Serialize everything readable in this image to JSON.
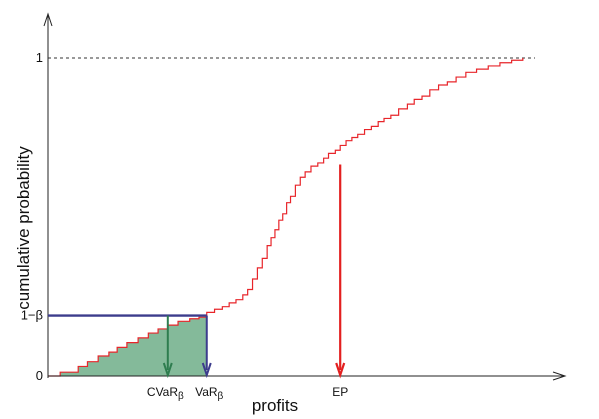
{
  "chart_data": {
    "type": "line",
    "title": "",
    "xlabel": "profits",
    "ylabel": "cumulative probability",
    "ylim": [
      0,
      1
    ],
    "y_ticks": [
      {
        "value": 0,
        "label": "0"
      },
      {
        "value": 0.19,
        "label": "1−β"
      },
      {
        "value": 1,
        "label": "1"
      }
    ],
    "reference_line": {
      "y": 1,
      "style": "dashed"
    },
    "beta_level": 0.19,
    "annotations": {
      "cvar": {
        "x": 0.246,
        "label": "CVaR",
        "subscript": "β",
        "color": "#2e7d4f"
      },
      "var": {
        "x": 0.326,
        "label": "VaR",
        "subscript": "β",
        "color": "#3c3c8c"
      },
      "ep": {
        "x": 0.6,
        "label": "EP",
        "color": "#e32020"
      }
    },
    "colors": {
      "cdf": "#e8252a",
      "tail_fill": "#6fae88",
      "tail_fill_opacity": "0.85",
      "var_line": "#3c3c8c",
      "cvar_arrow": "#2e7d4f",
      "ep_arrow": "#e32020",
      "axes": "#222222"
    },
    "series": [
      {
        "style": "step",
        "points": [
          [
            0,
            0
          ],
          [
            0.025,
            0.012
          ],
          [
            0.062,
            0.03
          ],
          [
            0.081,
            0.045
          ],
          [
            0.103,
            0.063
          ],
          [
            0.125,
            0.075
          ],
          [
            0.142,
            0.09
          ],
          [
            0.162,
            0.105
          ],
          [
            0.185,
            0.12
          ],
          [
            0.206,
            0.135
          ],
          [
            0.226,
            0.148
          ],
          [
            0.246,
            0.16
          ],
          [
            0.267,
            0.172
          ],
          [
            0.291,
            0.18
          ],
          [
            0.31,
            0.185
          ],
          [
            0.326,
            0.2
          ],
          [
            0.342,
            0.21
          ],
          [
            0.358,
            0.218
          ],
          [
            0.372,
            0.23
          ],
          [
            0.386,
            0.24
          ],
          [
            0.4,
            0.255
          ],
          [
            0.41,
            0.272
          ],
          [
            0.42,
            0.305
          ],
          [
            0.43,
            0.34
          ],
          [
            0.44,
            0.37
          ],
          [
            0.45,
            0.41
          ],
          [
            0.458,
            0.435
          ],
          [
            0.466,
            0.46
          ],
          [
            0.474,
            0.49
          ],
          [
            0.482,
            0.51
          ],
          [
            0.49,
            0.545
          ],
          [
            0.498,
            0.565
          ],
          [
            0.508,
            0.6
          ],
          [
            0.518,
            0.625
          ],
          [
            0.528,
            0.642
          ],
          [
            0.54,
            0.66
          ],
          [
            0.554,
            0.67
          ],
          [
            0.566,
            0.685
          ],
          [
            0.576,
            0.7
          ],
          [
            0.59,
            0.71
          ],
          [
            0.6,
            0.725
          ],
          [
            0.612,
            0.74
          ],
          [
            0.624,
            0.75
          ],
          [
            0.636,
            0.76
          ],
          [
            0.65,
            0.775
          ],
          [
            0.664,
            0.785
          ],
          [
            0.678,
            0.8
          ],
          [
            0.69,
            0.81
          ],
          [
            0.704,
            0.82
          ],
          [
            0.72,
            0.84
          ],
          [
            0.738,
            0.855
          ],
          [
            0.752,
            0.87
          ],
          [
            0.768,
            0.88
          ],
          [
            0.784,
            0.9
          ],
          [
            0.802,
            0.915
          ],
          [
            0.82,
            0.925
          ],
          [
            0.838,
            0.94
          ],
          [
            0.858,
            0.955
          ],
          [
            0.88,
            0.965
          ],
          [
            0.904,
            0.975
          ],
          [
            0.928,
            0.985
          ],
          [
            0.952,
            0.993
          ],
          [
            0.975,
            1.0
          ]
        ]
      }
    ]
  }
}
